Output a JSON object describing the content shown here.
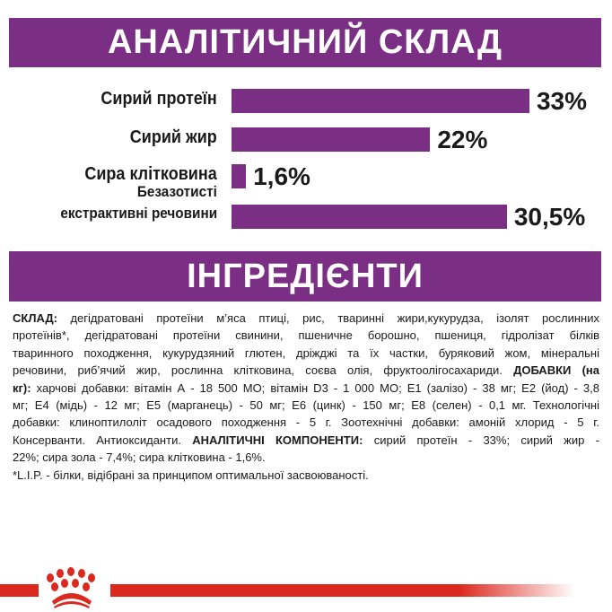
{
  "analysis": {
    "title": "АНАЛІТИЧНИЙ СКЛАД",
    "bar_color": "#7a2f85",
    "items": [
      {
        "label": "Сирий протеїн",
        "value": 33,
        "value_label": "33%"
      },
      {
        "label": "Сирий жир",
        "value": 22,
        "value_label": "22%"
      },
      {
        "label": "Сира клітковина",
        "value": 1.6,
        "value_label": "1,6%"
      },
      {
        "label_line1": "Безазотисті",
        "label_line2": "екстрактивні речовини",
        "value": 30.5,
        "value_label": "30,5%"
      }
    ]
  },
  "ingredients": {
    "title": "ІНГРЕДІЄНТИ",
    "lines": [
      [
        {
          "t": "СКЛАД:",
          "b": true
        },
        {
          "t": " дегідратовані протеїни м’яса птиці, рис, тваринні жири,кукурудза, ізолят рослинних"
        }
      ],
      [
        {
          "t": "протеїнів*, дегідратовані протеїни свинини, пшеничне борошно, пшениця, гідролізат білків"
        }
      ],
      [
        {
          "t": "тваринного походження, кукурудзяний глютен, дріжджі та їх частки, буряковий жом, мінеральні"
        }
      ],
      [
        {
          "t": "речовини, риб’ячий жир, рослинна клітковина, соєва олія, фруктоолігосахариди.  "
        },
        {
          "t": "ДОБАВКИ (на",
          "b": true
        }
      ],
      [
        {
          "t": "кг):",
          "b": true
        },
        {
          "t": " харчові добавки: вітамін А - 18 500 МО; вітамін D3 - 1 000 МО; Е1 (залізо) - 38 мг; Е2 (йод) - 3,8"
        }
      ],
      [
        {
          "t": "мг; Е4 (мідь) - 12 мг; Е5 (марганець) - 50 мг; Е6 (цинк) - 150 мг; Е8 (селен) - 0,1 мг.  Технологічні"
        }
      ],
      [
        {
          "t": "добавки: клиноптилоліт осадового походження - 5 г. Зоотехнічні добавки: амоній хлорид - 5 г."
        }
      ],
      [
        {
          "t": "Консерванти. Антиоксиданти.  "
        },
        {
          "t": "АНАЛІТИЧНІ КОМПОНЕНТИ:",
          "b": true
        },
        {
          "t": " сирий протеїн - 33%; сирий жир -"
        }
      ],
      [
        {
          "t": "22%; сира зола - 7,4%; сира клітковина - 1,6%."
        }
      ],
      [
        {
          "t": "*L.I.P. - білки, відібрані за принципом оптимальної засвоюваності."
        }
      ]
    ]
  },
  "footer": {
    "logo": "Royal Canin crown",
    "line_color": "#dc291e"
  }
}
